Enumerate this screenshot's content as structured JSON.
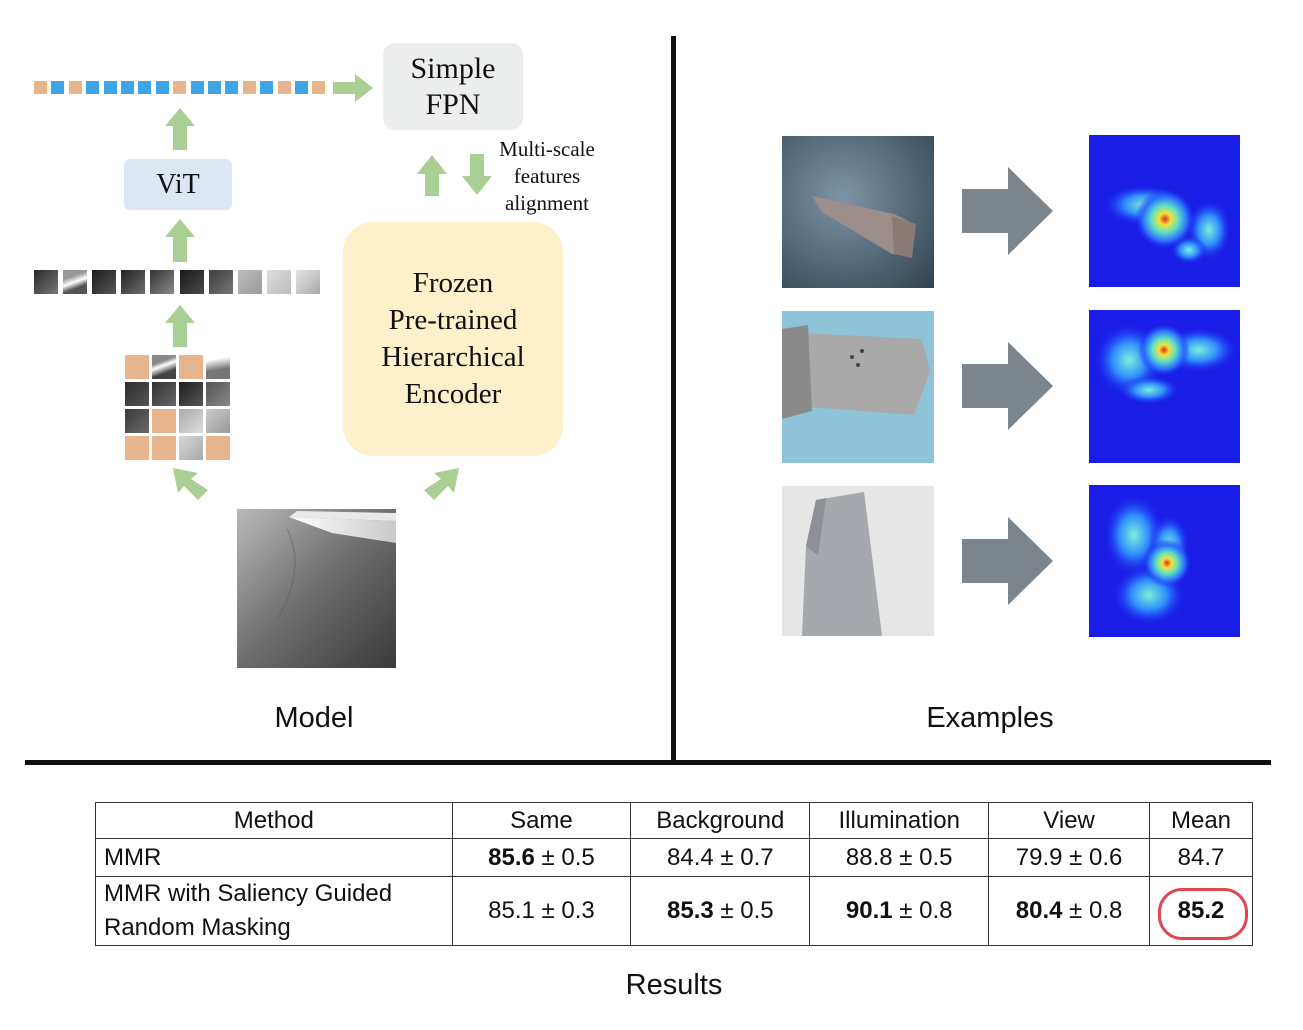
{
  "model": {
    "fpn_label": "Simple FPN",
    "fpn_lines": [
      "Simple",
      "FPN"
    ],
    "vit_label": "ViT",
    "encoder_lines": [
      "Frozen",
      "Pre-trained",
      "Hierarchical",
      "Encoder"
    ],
    "alignment_lines": [
      "Multi-scale",
      "features",
      "alignment"
    ],
    "caption": "Model",
    "token_colors": {
      "masked": "#e8b48b",
      "visible": "#3fa4e6"
    },
    "token_pattern": [
      "masked",
      "visible",
      "masked",
      "visible",
      "visible",
      "visible",
      "visible",
      "visible",
      "masked",
      "visible",
      "visible",
      "visible",
      "masked",
      "visible",
      "masked",
      "visible",
      "masked"
    ],
    "arrow_color": "#a9cf95",
    "patch_grid": [
      [
        "masked",
        "image",
        "masked",
        "image"
      ],
      [
        "image",
        "image",
        "image",
        "image"
      ],
      [
        "image",
        "masked",
        "image",
        "image"
      ],
      [
        "masked",
        "masked",
        "image",
        "masked"
      ]
    ]
  },
  "examples": {
    "caption": "Examples",
    "arrow_color": "#7d858c",
    "rows": [
      {
        "input": "turbine-blade-dark-background",
        "output": "saliency-heatmap"
      },
      {
        "input": "turbine-blade-blue-background",
        "output": "saliency-heatmap"
      },
      {
        "input": "turbine-blade-white-background",
        "output": "saliency-heatmap"
      }
    ]
  },
  "results": {
    "caption": "Results",
    "headers": [
      "Method",
      "Same",
      "Background",
      "Illumination",
      "View",
      "Mean"
    ],
    "rows": [
      {
        "method_lines": [
          "MMR"
        ],
        "same": {
          "bold": "85.6",
          "rest": " ± 0.5"
        },
        "background": {
          "bold": "",
          "rest": "84.4 ± 0.7"
        },
        "illumination": {
          "bold": "",
          "rest": "88.8 ± 0.5"
        },
        "view": {
          "bold": "",
          "rest": "79.9 ± 0.6"
        },
        "mean": {
          "bold": "",
          "rest": "84.7"
        }
      },
      {
        "method_lines": [
          "MMR with Saliency Guided",
          "Random Masking"
        ],
        "same": {
          "bold": "",
          "rest": "85.1 ± 0.3"
        },
        "background": {
          "bold": "85.3",
          "rest": " ± 0.5"
        },
        "illumination": {
          "bold": "90.1",
          "rest": " ± 0.8"
        },
        "view": {
          "bold": "80.4",
          "rest": " ± 0.8"
        },
        "mean": {
          "bold": "85.2",
          "rest": ""
        }
      }
    ],
    "highlight_color": "#e0474f"
  }
}
